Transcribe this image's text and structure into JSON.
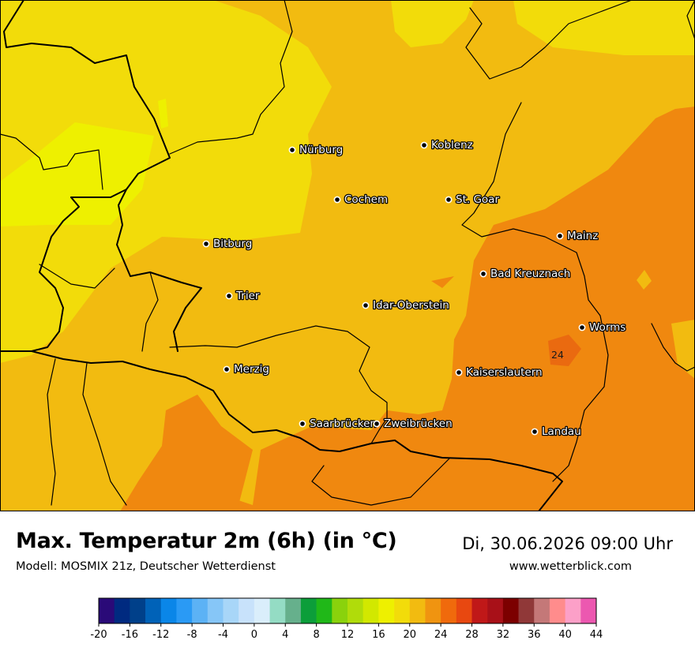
{
  "map": {
    "colors": {
      "t18_20": "#f2dc0a",
      "t16_18": "#eef000",
      "t20_22": "#f2bb10",
      "t22_24": "#f0880f",
      "t24_26": "#ea6a10",
      "border": "#000000"
    },
    "cities": [
      {
        "name": "Nürburg"
      },
      {
        "name": "Koblenz"
      },
      {
        "name": "Cochem"
      },
      {
        "name": "St. Goar"
      },
      {
        "name": "Mainz"
      },
      {
        "name": "Bitburg"
      },
      {
        "name": "Bad Kreuznach"
      },
      {
        "name": "Trier"
      },
      {
        "name": "Idar-Oberstein"
      },
      {
        "name": "Worms"
      },
      {
        "name": "Merzig"
      },
      {
        "name": "Kaiserslautern"
      },
      {
        "name": "Saarbrücken"
      },
      {
        "name": "Zweibrücken"
      },
      {
        "name": "Landau"
      }
    ],
    "contour_labels": [
      "24"
    ]
  },
  "footer": {
    "title": "Max. Temperatur 2m (6h) (in °C)",
    "subtitle": "Modell: MOSMIX 21z, Deutscher Wetterdienst",
    "datetime": "Di, 30.06.2026 09:00 Uhr",
    "website": "www.wetterblick.com"
  },
  "legend": {
    "colors": [
      "#2a0a78",
      "#002a80",
      "#00408a",
      "#0062b8",
      "#0a86e8",
      "#2a9af5",
      "#5cb2f5",
      "#86c6f7",
      "#a8d6f8",
      "#c8e2fb",
      "#daeefb",
      "#94dcc4",
      "#66b08c",
      "#0c9e3a",
      "#20b818",
      "#8ad20c",
      "#b0dc0a",
      "#d2e800",
      "#eef000",
      "#f2dc0a",
      "#f2bb10",
      "#f09410",
      "#f06a0c",
      "#e84810",
      "#c01818",
      "#a81018",
      "#7c0000",
      "#903838",
      "#c47878",
      "#ff8c8c",
      "#fca0c8",
      "#ec58b0"
    ],
    "ticks": [
      "-20",
      "-16",
      "-12",
      "-8",
      "-4",
      "0",
      "4",
      "8",
      "12",
      "16",
      "20",
      "24",
      "28",
      "32",
      "36",
      "40",
      "44"
    ]
  }
}
